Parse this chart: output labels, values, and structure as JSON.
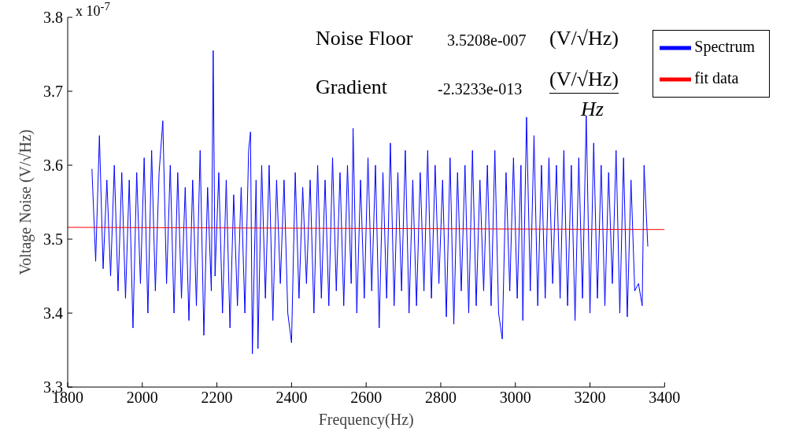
{
  "chart_data": {
    "type": "line",
    "xlabel": "Frequency(Hz)",
    "ylabel": "Voltage Noise (V/√Hz)",
    "annotations": [
      "x 10$^{-7}$",
      "Noise Floor",
      "3.5208e-007",
      "(V/√Hz)",
      "Gradient",
      "-2.3233e-013",
      "(V/√Hz)",
      "Hz"
    ],
    "xlim": [
      1800,
      3400
    ],
    "xticks": [
      1800,
      2000,
      2200,
      2400,
      2600,
      2800,
      3000,
      3200,
      3400
    ],
    "ylim": [
      3.3,
      3.8
    ],
    "yticks": [
      3.3,
      3.4,
      3.5,
      3.6,
      3.7,
      3.8
    ],
    "grid": false,
    "legend": "top right",
    "marker": "none",
    "line_style": "solid",
    "series": [
      {
        "name": "Spectrum",
        "color": "#0000ff",
        "x": [
          1865,
          1875,
          1885,
          1895,
          1905,
          1915,
          1925,
          1935,
          1945,
          1955,
          1965,
          1975,
          1985,
          1995,
          2005,
          2015,
          2025,
          2035,
          2045,
          2055,
          2065,
          2075,
          2085,
          2095,
          2105,
          2115,
          2125,
          2135,
          2145,
          2155,
          2165,
          2175,
          2185,
          2190,
          2195,
          2205,
          2215,
          2225,
          2235,
          2245,
          2255,
          2265,
          2275,
          2285,
          2290,
          2295,
          2305,
          2310,
          2320,
          2330,
          2340,
          2350,
          2360,
          2370,
          2380,
          2390,
          2400,
          2410,
          2420,
          2430,
          2440,
          2450,
          2460,
          2470,
          2480,
          2490,
          2500,
          2510,
          2520,
          2530,
          2540,
          2550,
          2560,
          2565,
          2575,
          2585,
          2595,
          2605,
          2615,
          2625,
          2635,
          2645,
          2655,
          2665,
          2675,
          2685,
          2695,
          2705,
          2715,
          2725,
          2735,
          2745,
          2755,
          2765,
          2775,
          2785,
          2795,
          2805,
          2815,
          2825,
          2835,
          2845,
          2855,
          2865,
          2875,
          2885,
          2895,
          2905,
          2915,
          2925,
          2935,
          2945,
          2955,
          2965,
          2975,
          2985,
          2995,
          3005,
          3015,
          3020,
          3030,
          3040,
          3050,
          3060,
          3070,
          3080,
          3090,
          3100,
          3110,
          3120,
          3130,
          3140,
          3150,
          3160,
          3170,
          3180,
          3190,
          3200,
          3210,
          3220,
          3230,
          3240,
          3250,
          3260,
          3270,
          3280,
          3290,
          3300,
          3310,
          3320,
          3330,
          3340,
          3345,
          3355
        ],
        "values": [
          3.595,
          3.47,
          3.64,
          3.46,
          3.58,
          3.45,
          3.6,
          3.43,
          3.59,
          3.42,
          3.58,
          3.38,
          3.59,
          3.44,
          3.61,
          3.4,
          3.62,
          3.43,
          3.59,
          3.66,
          3.44,
          3.6,
          3.4,
          3.59,
          3.42,
          3.57,
          3.39,
          3.58,
          3.41,
          3.62,
          3.37,
          3.57,
          3.43,
          3.755,
          3.45,
          3.59,
          3.4,
          3.58,
          3.38,
          3.56,
          3.41,
          3.57,
          3.4,
          3.62,
          3.645,
          3.345,
          3.58,
          3.352,
          3.6,
          3.42,
          3.6,
          3.39,
          3.58,
          3.44,
          3.58,
          3.4,
          3.36,
          3.59,
          3.42,
          3.57,
          3.44,
          3.58,
          3.4,
          3.6,
          3.42,
          3.58,
          3.41,
          3.61,
          3.43,
          3.59,
          3.41,
          3.6,
          3.44,
          3.65,
          3.4,
          3.58,
          3.42,
          3.61,
          3.43,
          3.6,
          3.38,
          3.59,
          3.42,
          3.63,
          3.41,
          3.59,
          3.43,
          3.62,
          3.4,
          3.58,
          3.41,
          3.59,
          3.43,
          3.62,
          3.42,
          3.6,
          3.44,
          3.58,
          3.395,
          3.61,
          3.385,
          3.59,
          3.43,
          3.6,
          3.4,
          3.62,
          3.41,
          3.58,
          3.43,
          3.6,
          3.41,
          3.62,
          3.4,
          3.365,
          3.59,
          3.43,
          3.61,
          3.42,
          3.6,
          3.39,
          3.665,
          3.43,
          3.64,
          3.41,
          3.6,
          3.42,
          3.61,
          3.44,
          3.6,
          3.42,
          3.62,
          3.41,
          3.6,
          3.39,
          3.61,
          3.42,
          3.667,
          3.4,
          3.63,
          3.42,
          3.6,
          3.41,
          3.59,
          3.44,
          3.62,
          3.4,
          3.61,
          3.395,
          3.58,
          3.43,
          3.44,
          3.41,
          3.6,
          3.49
        ]
      },
      {
        "name": "fit data",
        "color": "#ff0000",
        "x": [
          1800,
          3400
        ],
        "values": [
          3.516,
          3.513
        ]
      }
    ]
  }
}
